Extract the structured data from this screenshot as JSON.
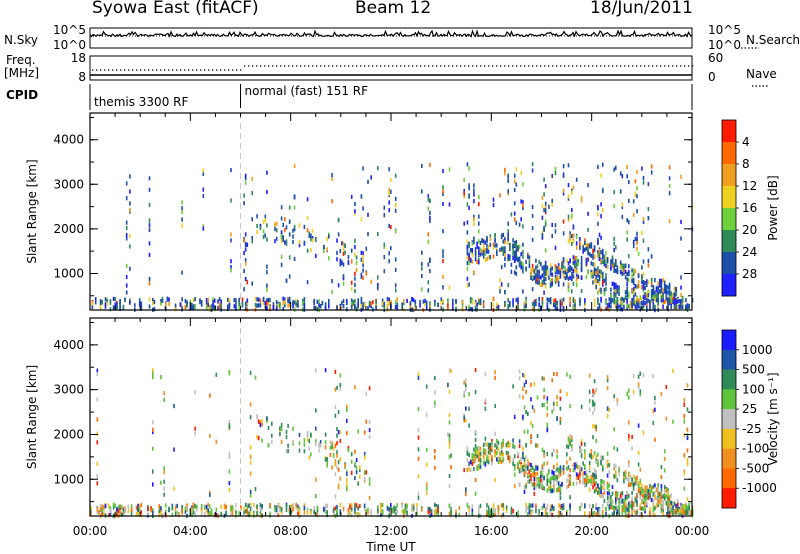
{
  "header": {
    "radar": "Syowa East (fitACF)",
    "beam": "Beam 12",
    "date": "18/Jun/2011"
  },
  "left_labels": {
    "nsky": "N.Sky",
    "freq": "Freq.",
    "mhz": "[MHz]",
    "cpid": "CPID"
  },
  "right_labels": {
    "nsearch": "N.Search",
    "nave": "Nave"
  },
  "noise_panel": {
    "left_ticks": [
      "10^5",
      "10^0"
    ],
    "right_ticks": [
      "10^5",
      "10^0"
    ]
  },
  "freq_panel": {
    "left_ticks": [
      "18",
      "8"
    ],
    "right_ticks": [
      "60",
      "0"
    ]
  },
  "cpid_panel": {
    "modes": [
      {
        "name": "themis 3300 RF",
        "start_hour": 0
      },
      {
        "name": "normal (fast) 151 RF",
        "start_hour": 6
      }
    ]
  },
  "colors": {
    "power": [
      "#2020ff",
      "#1d4fa8",
      "#2e8b57",
      "#6ccf3b",
      "#f0d020",
      "#f0a020",
      "#ff6a00",
      "#ff1a00"
    ],
    "velocity": [
      "#1a1aff",
      "#1e56a8",
      "#2e8b57",
      "#5fc43c",
      "#c0c0c0",
      "#f0c020",
      "#f09020",
      "#ff6a00",
      "#ff1a00"
    ]
  },
  "chart_data": [
    {
      "type": "heatmap",
      "name": "power",
      "ylabel": "Slant Range [km]",
      "xlabel": "Time UT",
      "xlim": [
        0,
        24
      ],
      "ylim": [
        180,
        4600
      ],
      "x_ticks": [
        "00:00",
        "04:00",
        "08:00",
        "12:00",
        "16:00",
        "20:00",
        "00:00"
      ],
      "y_ticks": [
        "1000",
        "2000",
        "3000",
        "4000"
      ],
      "colorbar": {
        "label": "Power [dB]",
        "ticks": [
          "4",
          "8",
          "12",
          "16",
          "20",
          "24",
          "28"
        ]
      }
    },
    {
      "type": "heatmap",
      "name": "velocity",
      "ylabel": "Slant Range [km]",
      "xlabel": "Time UT",
      "xlim": [
        0,
        24
      ],
      "ylim": [
        180,
        4600
      ],
      "x_ticks": [
        "00:00",
        "04:00",
        "08:00",
        "12:00",
        "16:00",
        "20:00",
        "00:00"
      ],
      "y_ticks": [
        "1000",
        "2000",
        "3000",
        "4000"
      ],
      "colorbar": {
        "label": "Velocity [m s⁻¹]",
        "ticks": [
          "1000",
          "500",
          "100",
          "25",
          "-25",
          "-100",
          "-500",
          "-1000"
        ]
      }
    }
  ],
  "x_axis_title": "Time UT"
}
